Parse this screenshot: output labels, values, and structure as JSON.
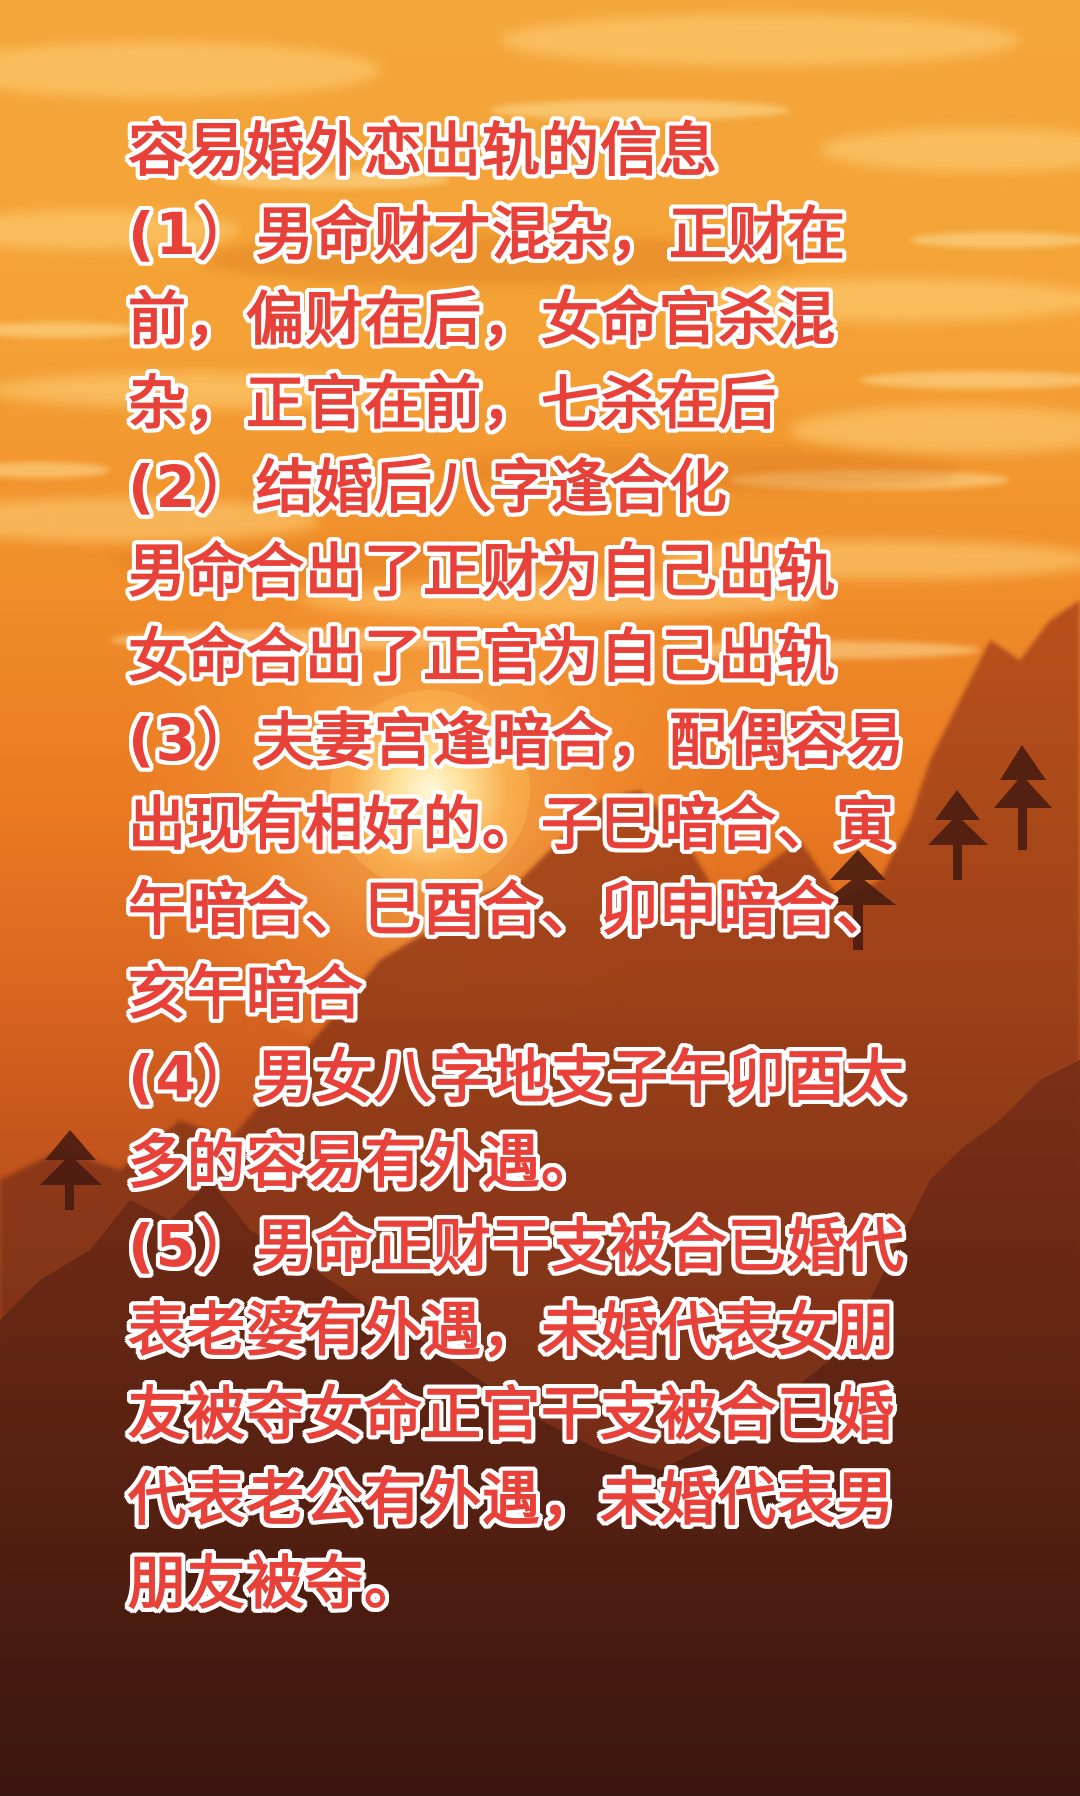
{
  "lines": [
    "容易婚外恋出轨的信息",
    "(1）男命财才混杂，正财在",
    "前，偏财在后，女命官杀混",
    "杂，正官在前，七杀在后",
    "(2）结婚后八字逢合化",
    "男命合出了正财为自己出轨",
    "女命合出了正官为自己出轨",
    "(3）夫妻宫逢暗合，配偶容易",
    "出现有相好的。子巳暗合、寅",
    "午暗合、巳酉合、卯申暗合、",
    "亥午暗合",
    "(4）男女八字地支子午卯酉太",
    "多的容易有外遇。",
    "(5）男命正财干支被合已婚代",
    "表老婆有外遇，未婚代表女朋",
    "友被夺女命正官干支被合已婚",
    "代表老公有外遇，未婚代表男",
    "朋友被夺。"
  ],
  "colors": {
    "text": "#e8413a",
    "outline": "#ffffff",
    "sky": "#f3a63a"
  }
}
